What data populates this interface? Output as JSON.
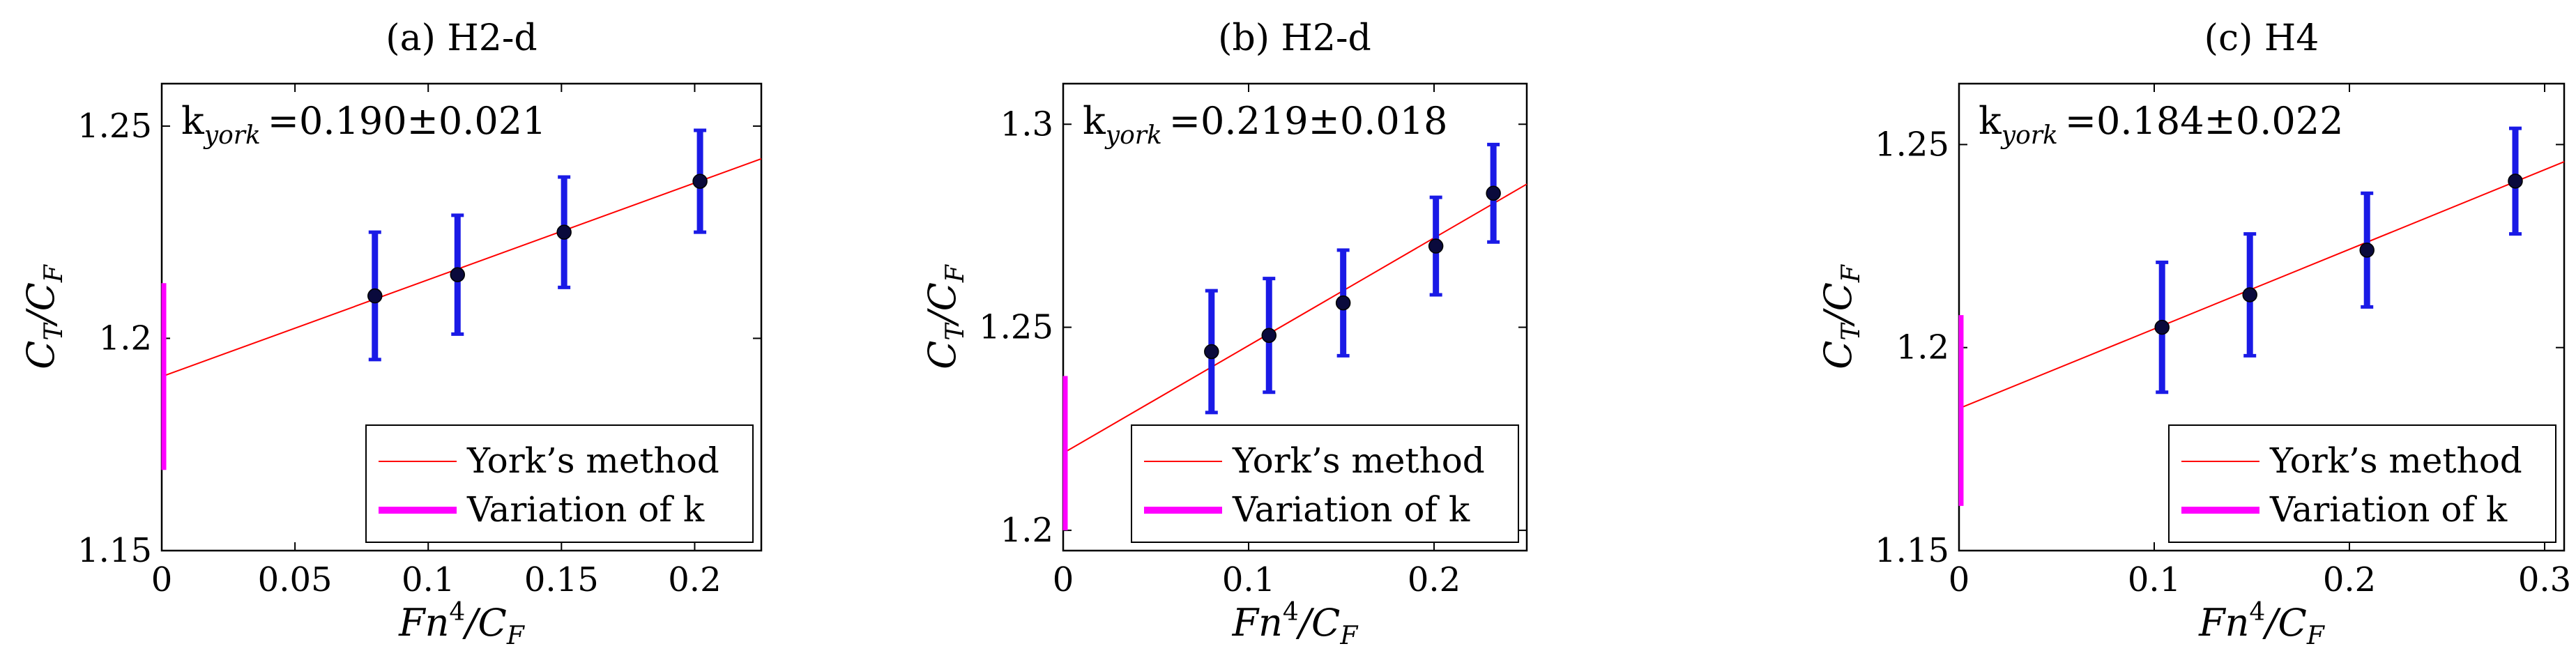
{
  "chart_data": [
    {
      "type": "scatter",
      "title": "(a) H2-d",
      "annotation": {
        "label": "k",
        "subscript": "york",
        "text": "=0.190±0.021"
      },
      "xlabel": {
        "main": "Fn",
        "sup": "4",
        "after": "/C",
        "sub": "F"
      },
      "ylabel": {
        "main": "C",
        "sub": "T",
        "after": "/C",
        "sub2": "F"
      },
      "xlim": [
        0,
        0.225
      ],
      "ylim": [
        1.15,
        1.26
      ],
      "xticks": [
        0,
        0.05,
        0.1,
        0.15,
        0.2
      ],
      "xtick_labels": [
        "0",
        "0.05",
        "0.1",
        "0.15",
        "0.2"
      ],
      "yticks": [
        1.15,
        1.2,
        1.25
      ],
      "ytick_labels": [
        "1.15",
        "1.2",
        "1.25"
      ],
      "grid": false,
      "points": [
        {
          "x": 0.08,
          "y": 1.21,
          "err": 0.015
        },
        {
          "x": 0.111,
          "y": 1.215,
          "err": 0.014
        },
        {
          "x": 0.151,
          "y": 1.225,
          "err": 0.013
        },
        {
          "x": 0.202,
          "y": 1.237,
          "err": 0.012
        }
      ],
      "fit_line": {
        "intercept": 1.191,
        "slope": 0.228
      },
      "k_variation": {
        "x": 0,
        "low": 1.169,
        "high": 1.213
      },
      "legend": {
        "position": "bottom-right",
        "entries": [
          "York’s method",
          "Variation of k"
        ]
      }
    },
    {
      "type": "scatter",
      "title": "(b) H2-d",
      "annotation": {
        "label": "k",
        "subscript": "york",
        "text": "=0.219±0.018"
      },
      "xlabel": {
        "main": "Fn",
        "sup": "4",
        "after": "/C",
        "sub": "F"
      },
      "ylabel": {
        "main": "C",
        "sub": "T",
        "after": "/C",
        "sub2": "F"
      },
      "xlim": [
        0,
        0.25
      ],
      "ylim": [
        1.195,
        1.31
      ],
      "xticks": [
        0,
        0.1,
        0.2
      ],
      "xtick_labels": [
        "0",
        "0.1",
        "0.2"
      ],
      "yticks": [
        1.2,
        1.25,
        1.3
      ],
      "ytick_labels": [
        "1.2",
        "1.25",
        "1.3"
      ],
      "grid": false,
      "points": [
        {
          "x": 0.08,
          "y": 1.244,
          "err": 0.015
        },
        {
          "x": 0.111,
          "y": 1.248,
          "err": 0.014
        },
        {
          "x": 0.151,
          "y": 1.256,
          "err": 0.013
        },
        {
          "x": 0.201,
          "y": 1.27,
          "err": 0.012
        },
        {
          "x": 0.232,
          "y": 1.283,
          "err": 0.012
        }
      ],
      "fit_line": {
        "intercept": 1.219,
        "slope": 0.265
      },
      "k_variation": {
        "x": 0,
        "low": 1.2,
        "high": 1.238
      },
      "legend": {
        "position": "bottom-right",
        "entries": [
          "York’s method",
          "Variation of k"
        ]
      }
    },
    {
      "type": "scatter",
      "title": "(c) H4",
      "annotation": {
        "label": "k",
        "subscript": "york",
        "text": "=0.184±0.022"
      },
      "xlabel": {
        "main": "Fn",
        "sup": "4",
        "after": "/C",
        "sub": "F"
      },
      "ylabel": {
        "main": "C",
        "sub": "T",
        "after": "/C",
        "sub2": "F"
      },
      "xlim": [
        0,
        0.31
      ],
      "ylim": [
        1.15,
        1.265
      ],
      "xticks": [
        0,
        0.1,
        0.2,
        0.3
      ],
      "xtick_labels": [
        "0",
        "0.1",
        "0.2",
        "0.3"
      ],
      "yticks": [
        1.15,
        1.2,
        1.25
      ],
      "ytick_labels": [
        "1.15",
        "1.2",
        "1.25"
      ],
      "grid": false,
      "points": [
        {
          "x": 0.104,
          "y": 1.205,
          "err": 0.016
        },
        {
          "x": 0.149,
          "y": 1.213,
          "err": 0.015
        },
        {
          "x": 0.209,
          "y": 1.224,
          "err": 0.014
        },
        {
          "x": 0.285,
          "y": 1.241,
          "err": 0.013
        }
      ],
      "fit_line": {
        "intercept": 1.185,
        "slope": 0.196
      },
      "k_variation": {
        "x": 0,
        "low": 1.161,
        "high": 1.208
      },
      "legend": {
        "position": "bottom-right",
        "entries": [
          "York’s method",
          "Variation of k"
        ]
      }
    }
  ],
  "colors": {
    "fit_line": "#ff0000",
    "error_bar": "#1a1ae6",
    "point": "#0a0a3c",
    "k_variation": "#ff00ff",
    "axes": "#000000"
  }
}
